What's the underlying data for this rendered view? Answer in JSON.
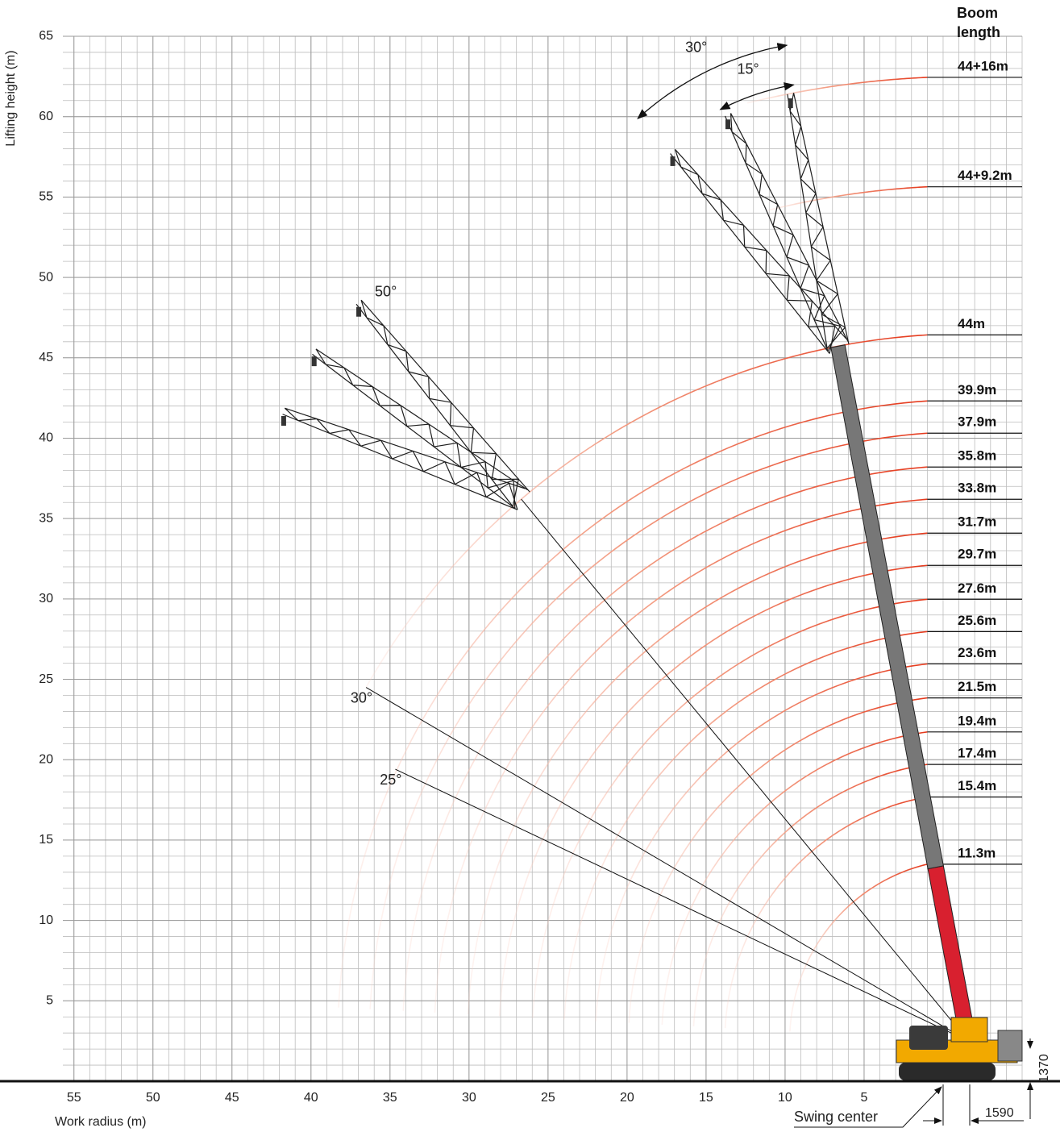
{
  "chart_data": {
    "type": "working-range",
    "y_label": "Lifting height (m)",
    "x_label": "Work radius (m)",
    "legend_title": "Boom length",
    "xlim": [
      55.7,
      -5
    ],
    "ylim": [
      0,
      65
    ],
    "xticks": [
      55,
      50,
      45,
      40,
      35,
      30,
      25,
      20,
      15,
      10,
      5
    ],
    "yticks": [
      5,
      10,
      15,
      20,
      25,
      30,
      35,
      40,
      45,
      50,
      55,
      60,
      65
    ],
    "grid": true,
    "boom_lengths": {
      "values": [
        11.3,
        15.4,
        17.4,
        19.4,
        21.5,
        23.6,
        25.6,
        27.6,
        29.7,
        31.7,
        33.8,
        35.8,
        37.9,
        39.9,
        44,
        53.2,
        60
      ],
      "value_labels": [
        "11.3m",
        "15.4m",
        "17.4m",
        "19.4m",
        "21.5m",
        "23.6m",
        "25.6m",
        "27.6m",
        "29.7m",
        "31.7m",
        "33.8m",
        "35.8m",
        "37.9m",
        "39.9m",
        "44m",
        "44+9.2m",
        "44+16m"
      ],
      "color": "#e5391c"
    },
    "angle_lines": {
      "values": [
        30,
        25
      ],
      "value_labels": [
        "30°",
        "25°"
      ]
    },
    "boom_angle": {
      "value": 50,
      "label": "50°"
    },
    "jib_offsets": {
      "values": [
        30,
        15
      ],
      "value_labels": [
        "30°",
        "15°"
      ]
    },
    "dimensions": {
      "height": 1370,
      "offset": 1590
    },
    "swing_center_label": "Swing center"
  }
}
